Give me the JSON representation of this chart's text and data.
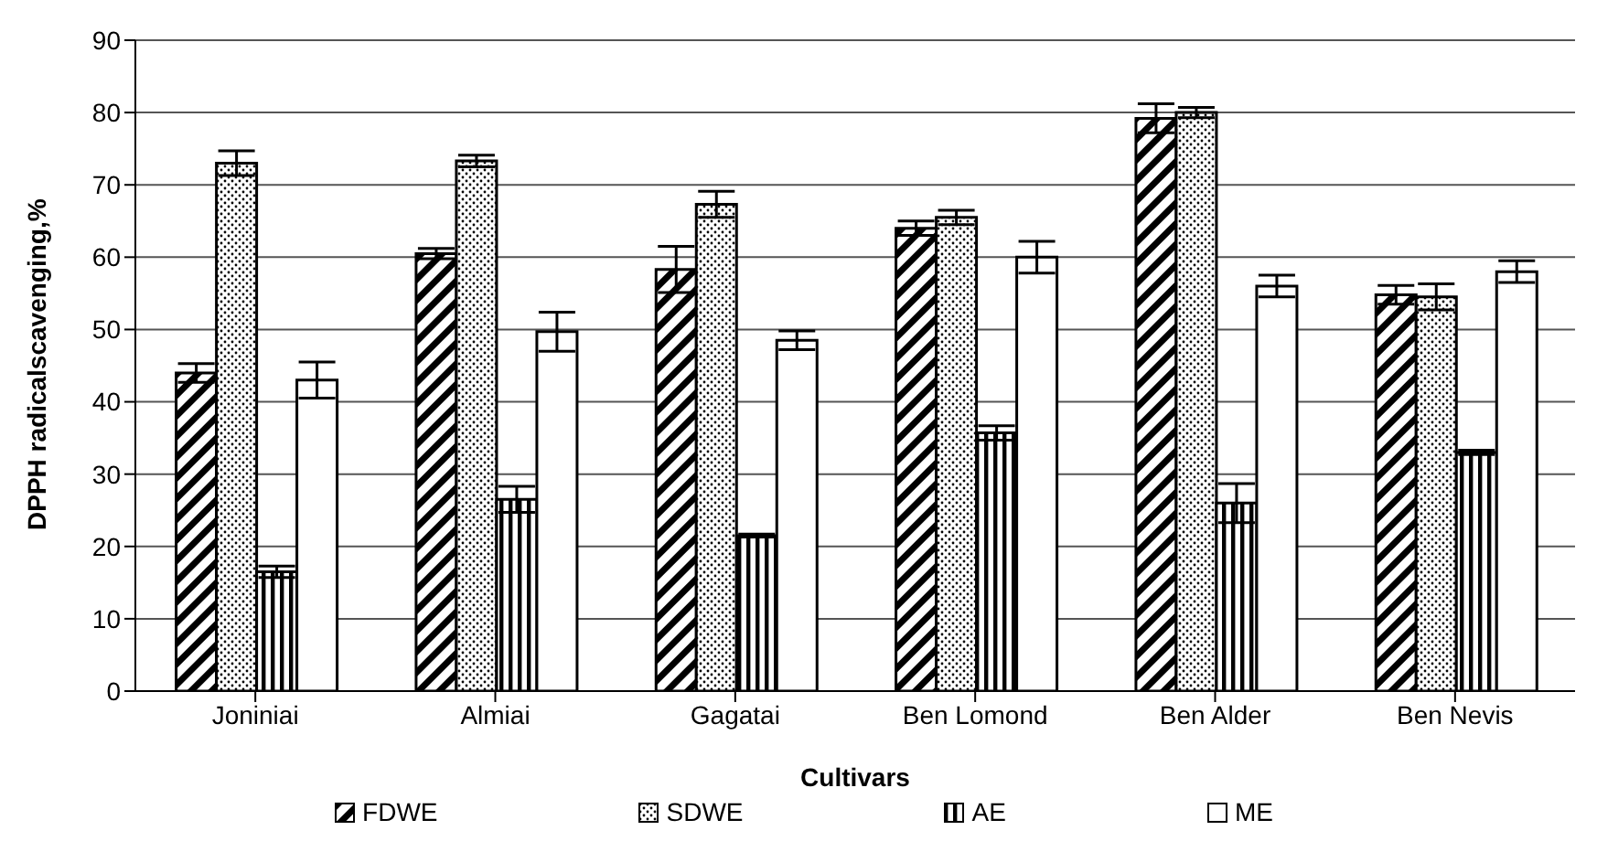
{
  "chart_data": {
    "type": "bar",
    "xlabel": "Cultivars",
    "ylabel": "DPPH radicalscavenging,%",
    "categories": [
      "Joniniai",
      "Almiai",
      "Gagatai",
      "Ben Lomond",
      "Ben Alder",
      "Ben Nevis"
    ],
    "series": [
      {
        "name": "FDWE",
        "color": "#000000",
        "values": [
          44,
          60.5,
          58.3,
          64,
          79.2,
          54.8
        ],
        "errors": [
          1.3,
          0.7,
          3.2,
          1,
          2,
          1.3
        ]
      },
      {
        "name": "SDWE",
        "color": "#000000",
        "values": [
          73,
          73.3,
          67.3,
          65.5,
          80,
          54.5
        ],
        "errors": [
          1.7,
          0.8,
          1.8,
          1,
          0.7,
          1.8
        ]
      },
      {
        "name": "AE",
        "color": "#000000",
        "values": [
          16.5,
          26.5,
          21.5,
          35.7,
          26,
          33
        ],
        "errors": [
          0.8,
          1.8,
          0.2,
          1,
          2.7,
          0.3
        ]
      },
      {
        "name": "ME",
        "color": "#000000",
        "values": [
          43,
          49.7,
          48.5,
          60,
          56,
          58
        ],
        "errors": [
          2.5,
          2.7,
          1.3,
          2.2,
          1.5,
          1.5
        ]
      }
    ],
    "ylim": [
      0,
      90
    ],
    "yticks": [
      0,
      10,
      20,
      30,
      40,
      50,
      60,
      70,
      80,
      90
    ],
    "grid": "y",
    "legend": "bottom"
  }
}
